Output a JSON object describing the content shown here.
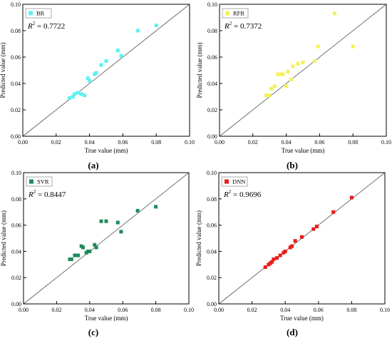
{
  "chart_data": [
    {
      "id": "a",
      "type": "scatter",
      "panel_label": "(a)",
      "xlabel": "True value (mm)",
      "ylabel": "Predicted value (mm)",
      "xlim": [
        0,
        0.1
      ],
      "ylim": [
        0,
        0.1
      ],
      "xticks": [
        "0.00",
        "0.02",
        "0.04",
        "0.06",
        "0.08",
        "0.10"
      ],
      "yticks": [
        "0.00",
        "0.02",
        "0.04",
        "0.06",
        "0.08",
        "0.10"
      ],
      "legend": "top-left",
      "reference_line": "y = x",
      "r2_label": "R",
      "r2_sup": "2",
      "r2_value": " = 0.7722",
      "series": [
        {
          "name": "BR",
          "color": "#5ef0f0",
          "marker": "square",
          "points": [
            [
              0.028,
              0.029
            ],
            [
              0.03,
              0.03
            ],
            [
              0.031,
              0.032
            ],
            [
              0.033,
              0.033
            ],
            [
              0.035,
              0.032
            ],
            [
              0.037,
              0.031
            ],
            [
              0.039,
              0.044
            ],
            [
              0.04,
              0.042
            ],
            [
              0.043,
              0.047
            ],
            [
              0.044,
              0.048
            ],
            [
              0.047,
              0.054
            ],
            [
              0.05,
              0.057
            ],
            [
              0.057,
              0.065
            ],
            [
              0.059,
              0.061
            ],
            [
              0.069,
              0.08
            ],
            [
              0.08,
              0.084
            ]
          ]
        }
      ]
    },
    {
      "id": "b",
      "type": "scatter",
      "panel_label": "(b)",
      "xlabel": "True value (mm)",
      "ylabel": "Predicted value (mm)",
      "xlim": [
        0,
        0.1
      ],
      "ylim": [
        0,
        0.1
      ],
      "xticks": [
        "0.00",
        "0.02",
        "0.04",
        "0.06",
        "0.08",
        "0.10"
      ],
      "yticks": [
        "0.00",
        "0.02",
        "0.04",
        "0.06",
        "0.08",
        "0.10"
      ],
      "legend": "top-left",
      "reference_line": "y = x",
      "r2_label": "R",
      "r2_sup": "2",
      "r2_value": " = 0.7372",
      "series": [
        {
          "name": "RFR",
          "color": "#f2f25a",
          "marker": "square",
          "points": [
            [
              0.028,
              0.031
            ],
            [
              0.03,
              0.031
            ],
            [
              0.031,
              0.036
            ],
            [
              0.033,
              0.038
            ],
            [
              0.035,
              0.047
            ],
            [
              0.036,
              0.047
            ],
            [
              0.038,
              0.047
            ],
            [
              0.04,
              0.038
            ],
            [
              0.041,
              0.049
            ],
            [
              0.043,
              0.043
            ],
            [
              0.044,
              0.053
            ],
            [
              0.047,
              0.055
            ],
            [
              0.05,
              0.056
            ],
            [
              0.057,
              0.057
            ],
            [
              0.059,
              0.068
            ],
            [
              0.069,
              0.093
            ],
            [
              0.08,
              0.068
            ]
          ]
        }
      ]
    },
    {
      "id": "c",
      "type": "scatter",
      "panel_label": "(c)",
      "xlabel": "True value (mm)",
      "ylabel": "Predicted value (mm)",
      "xlim": [
        0,
        0.1
      ],
      "ylim": [
        0,
        0.1
      ],
      "xticks": [
        "0.00",
        "0.02",
        "0.04",
        "0.06",
        "0.08",
        "0.10"
      ],
      "yticks": [
        "0.00",
        "0.02",
        "0.04",
        "0.06",
        "0.08",
        "0.10"
      ],
      "legend": "top-left",
      "reference_line": "y = x",
      "r2_label": "R",
      "r2_sup": "2",
      "r2_value": " = 0.8447",
      "series": [
        {
          "name": "SVR",
          "color": "#1f8a5a",
          "marker": "square",
          "points": [
            [
              0.028,
              0.034
            ],
            [
              0.029,
              0.034
            ],
            [
              0.031,
              0.037
            ],
            [
              0.033,
              0.037
            ],
            [
              0.035,
              0.044
            ],
            [
              0.036,
              0.043
            ],
            [
              0.038,
              0.039
            ],
            [
              0.039,
              0.04
            ],
            [
              0.04,
              0.04
            ],
            [
              0.043,
              0.045
            ],
            [
              0.044,
              0.043
            ],
            [
              0.047,
              0.063
            ],
            [
              0.05,
              0.063
            ],
            [
              0.057,
              0.062
            ],
            [
              0.059,
              0.055
            ],
            [
              0.069,
              0.071
            ],
            [
              0.08,
              0.074
            ]
          ]
        }
      ]
    },
    {
      "id": "d",
      "type": "scatter",
      "panel_label": "(d)",
      "xlabel": "True value (mm)",
      "ylabel": "Predicted value (mm)",
      "xlim": [
        0,
        0.1
      ],
      "ylim": [
        0,
        0.1
      ],
      "xticks": [
        "0.00",
        "0.02",
        "0.04",
        "0.06",
        "0.08",
        "0.10"
      ],
      "yticks": [
        "0.00",
        "0.02",
        "0.04",
        "0.06",
        "0.08",
        "0.10"
      ],
      "legend": "top-left",
      "reference_line": "y = x",
      "r2_label": "R",
      "r2_sup": "2",
      "r2_value": " = 0.9696",
      "series": [
        {
          "name": "DNN",
          "color": "#e81c1c",
          "marker": "square",
          "points": [
            [
              0.028,
              0.028
            ],
            [
              0.03,
              0.03
            ],
            [
              0.031,
              0.031
            ],
            [
              0.032,
              0.032
            ],
            [
              0.033,
              0.034
            ],
            [
              0.035,
              0.035
            ],
            [
              0.037,
              0.037
            ],
            [
              0.039,
              0.039
            ],
            [
              0.04,
              0.04
            ],
            [
              0.043,
              0.043
            ],
            [
              0.044,
              0.044
            ],
            [
              0.046,
              0.048
            ],
            [
              0.05,
              0.051
            ],
            [
              0.057,
              0.057
            ],
            [
              0.059,
              0.059
            ],
            [
              0.069,
              0.07
            ],
            [
              0.08,
              0.081
            ]
          ]
        }
      ]
    }
  ]
}
